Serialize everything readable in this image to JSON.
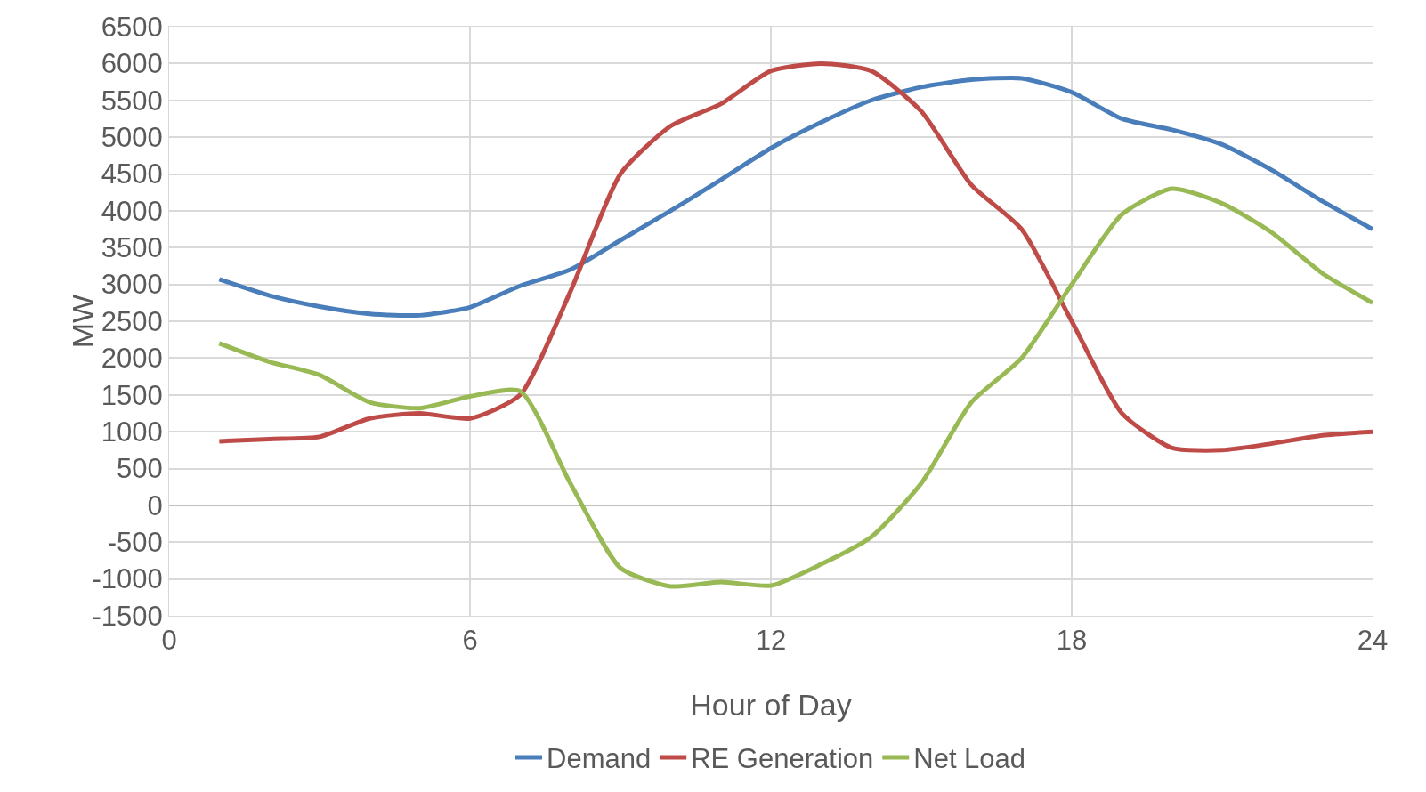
{
  "chart_data": {
    "type": "line",
    "xlabel": "Hour of Day",
    "ylabel": "MW",
    "x": [
      1,
      2,
      3,
      4,
      5,
      6,
      7,
      8,
      9,
      10,
      11,
      12,
      13,
      14,
      15,
      16,
      17,
      18,
      19,
      20,
      21,
      22,
      23,
      24
    ],
    "series": [
      {
        "name": "Demand",
        "color": "#4a7ebb",
        "values": [
          3070,
          2850,
          2700,
          2600,
          2580,
          2690,
          2980,
          3200,
          3600,
          4000,
          4420,
          4850,
          5200,
          5500,
          5680,
          5780,
          5800,
          5610,
          5250,
          5100,
          4900,
          4550,
          4130,
          3750
        ]
      },
      {
        "name": "RE Generation",
        "color": "#be4b48",
        "values": [
          870,
          900,
          930,
          1180,
          1250,
          1180,
          1500,
          2900,
          4500,
          5150,
          5450,
          5900,
          6000,
          5900,
          5350,
          4350,
          3750,
          2500,
          1250,
          780,
          750,
          840,
          950,
          1000
        ]
      },
      {
        "name": "Net Load",
        "color": "#98b954",
        "values": [
          2200,
          1950,
          1770,
          1400,
          1320,
          1480,
          1550,
          300,
          -850,
          -1100,
          -1040,
          -1090,
          -800,
          -430,
          300,
          1400,
          2000,
          3000,
          3950,
          4300,
          4100,
          3700,
          3150,
          2750
        ]
      }
    ],
    "xlim": [
      0,
      24
    ],
    "xticks": [
      0,
      6,
      12,
      18,
      24
    ],
    "ylim": [
      -1500,
      6500
    ],
    "yticks": [
      -1500,
      -1000,
      -500,
      0,
      500,
      1000,
      1500,
      2000,
      2500,
      3000,
      3500,
      4000,
      4500,
      5000,
      5500,
      6000,
      6500
    ],
    "grid": true,
    "legend": "bottom",
    "marker": "none",
    "line_style": "solid"
  }
}
